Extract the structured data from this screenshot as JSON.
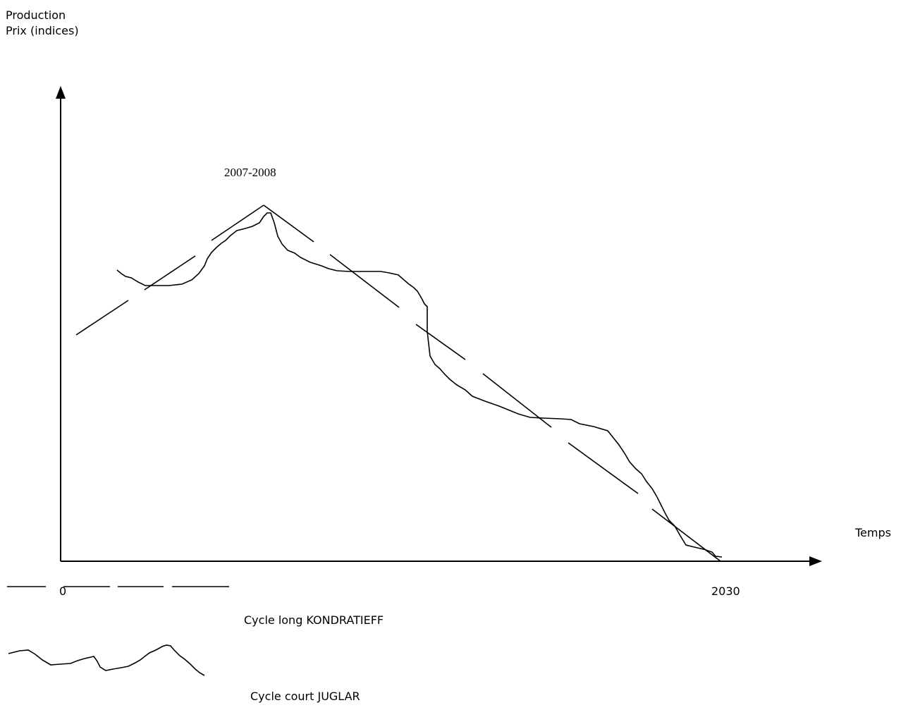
{
  "labels": {
    "ylabel_line1": "Production",
    "ylabel_line2": "Prix (indices)",
    "xlabel": "Temps",
    "x_start": "0",
    "x_end": "2030",
    "peak_annotation": "2007-2008"
  },
  "legend": {
    "long_cycle": "Cycle long KONDRATIEFF",
    "short_cycle": "Cycle court JUGLAR"
  },
  "colors": {
    "ink": "#000000",
    "background": "#ffffff"
  }
}
